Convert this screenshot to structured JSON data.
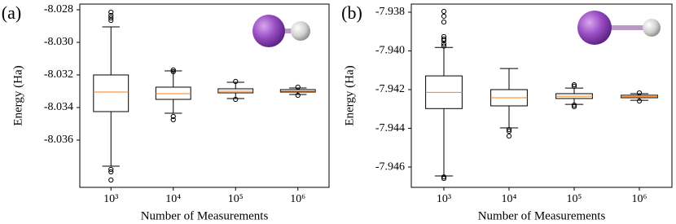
{
  "chart_data": [
    {
      "type": "box",
      "panel_label": "(a)",
      "x_label": "Number of Measurements",
      "y_label": "Energy (Ha)",
      "categories": [
        "10³",
        "10⁴",
        "10⁵",
        "10⁶"
      ],
      "ylim": [
        -8.0389,
        -8.02765
      ],
      "yticks": [
        -8.028,
        {
          "value": -8.03,
          "label": "-8.030"
        },
        -8.032,
        -8.034,
        -8.036
      ],
      "box_color": "#000000",
      "median_color": "#ff7f0e",
      "boxes": [
        {
          "whishi": -8.02905,
          "q3": -8.032,
          "med": -8.03305,
          "q1": -8.03425,
          "whislo": -8.0376,
          "fliers": [
            -8.02815,
            -8.02835,
            -8.0285,
            -8.02865,
            -8.0378,
            -8.03795,
            -8.03845
          ]
        },
        {
          "whishi": -8.03175,
          "q3": -8.03275,
          "med": -8.03315,
          "q1": -8.0335,
          "whislo": -8.03435,
          "fliers": [
            -8.0317,
            -8.0318,
            -8.03455,
            -8.03475
          ]
        },
        {
          "whishi": -8.03245,
          "q3": -8.03285,
          "med": -8.033,
          "q1": -8.0331,
          "whislo": -8.03345,
          "fliers": [
            -8.0324,
            -8.0335
          ]
        },
        {
          "whishi": -8.0328,
          "q3": -8.0329,
          "med": -8.033,
          "q1": -8.03305,
          "whislo": -8.0332,
          "fliers": [
            -8.03275,
            -8.03325
          ]
        }
      ]
    },
    {
      "type": "box",
      "panel_label": "(b)",
      "x_label": "Number of Measurements",
      "y_label": "Energy (Ha)",
      "categories": [
        "10³",
        "10⁴",
        "10⁵",
        "10⁶"
      ],
      "ylim": [
        -7.94705,
        -7.93758
      ],
      "yticks": [
        -7.938,
        {
          "value": -7.94,
          "label": "-7.940"
        },
        -7.942,
        -7.944,
        -7.946
      ],
      "box_color": "#000000",
      "median_color": "#ff7f0e",
      "boxes": [
        {
          "whishi": -7.93982,
          "q3": -7.94129,
          "med": -7.94214,
          "q1": -7.94298,
          "whislo": -7.94646,
          "fliers": [
            -7.93796,
            -7.93821,
            -7.93851,
            -7.93926,
            -7.93939,
            -7.93947,
            -7.93964,
            -7.93975,
            -7.94651,
            -7.94659
          ]
        },
        {
          "whishi": -7.94091,
          "q3": -7.942,
          "med": -7.94242,
          "q1": -7.94284,
          "whislo": -7.94398,
          "fliers": [
            -7.94406,
            -7.94415,
            -7.9444
          ]
        },
        {
          "whishi": -7.94192,
          "q3": -7.94221,
          "med": -7.94234,
          "q1": -7.94246,
          "whislo": -7.94276,
          "fliers": [
            -7.94175,
            -7.94183,
            -7.9428,
            -7.94288
          ]
        },
        {
          "whishi": -7.94221,
          "q3": -7.94229,
          "med": -7.94236,
          "q1": -7.94242,
          "whislo": -7.94255,
          "fliers": [
            -7.94217,
            -7.94259
          ]
        }
      ]
    }
  ]
}
